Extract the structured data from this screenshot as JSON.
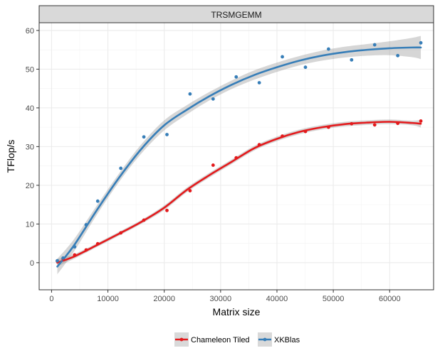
{
  "chart_data": {
    "type": "scatter",
    "title": "",
    "facet_label": "TRSMGEMM",
    "xlabel": "Matrix size",
    "ylabel": "TFlop/s",
    "xlim": [
      -2200,
      67800
    ],
    "ylim": [
      -7,
      62
    ],
    "x_ticks": [
      0,
      10000,
      20000,
      30000,
      40000,
      50000,
      60000
    ],
    "x_tick_labels": [
      "0",
      "10000",
      "20000",
      "30000",
      "40000",
      "50000",
      "60000"
    ],
    "y_ticks": [
      0,
      10,
      20,
      30,
      40,
      50,
      60
    ],
    "y_tick_labels": [
      "0",
      "10",
      "20",
      "30",
      "40",
      "50",
      "60"
    ],
    "grid": true,
    "legend_position": "bottom",
    "series": [
      {
        "name": "Chameleon Tiled",
        "color": "#e31a1c",
        "points": [
          [
            1024,
            0.4
          ],
          [
            2048,
            1.0
          ],
          [
            4096,
            2.0
          ],
          [
            6144,
            3.3
          ],
          [
            8192,
            4.9
          ],
          [
            12288,
            7.7
          ],
          [
            16384,
            11.0
          ],
          [
            20480,
            13.5
          ],
          [
            24576,
            18.6
          ],
          [
            28672,
            25.2
          ],
          [
            32768,
            27.1
          ],
          [
            36864,
            30.5
          ],
          [
            40960,
            32.7
          ],
          [
            45056,
            33.9
          ],
          [
            49152,
            35.0
          ],
          [
            53248,
            35.9
          ],
          [
            57344,
            35.6
          ],
          [
            61440,
            36.0
          ],
          [
            65536,
            36.6
          ]
        ],
        "fit": [
          [
            1024,
            0.0
          ],
          [
            4000,
            1.6
          ],
          [
            8000,
            4.5
          ],
          [
            12000,
            7.5
          ],
          [
            16000,
            10.6
          ],
          [
            20000,
            14.2
          ],
          [
            24000,
            18.8
          ],
          [
            28000,
            22.6
          ],
          [
            32000,
            26.1
          ],
          [
            36000,
            29.6
          ],
          [
            40000,
            32.0
          ],
          [
            44000,
            33.8
          ],
          [
            48000,
            35.0
          ],
          [
            52000,
            35.8
          ],
          [
            56000,
            36.2
          ],
          [
            60000,
            36.4
          ],
          [
            64000,
            36.1
          ],
          [
            65536,
            35.9
          ]
        ],
        "band_halfwidth": [
          1.0,
          0.6,
          0.5,
          0.5,
          0.5,
          0.6,
          0.6,
          0.6,
          0.6,
          0.6,
          0.6,
          0.6,
          0.6,
          0.6,
          0.6,
          0.6,
          0.6,
          1.0
        ]
      },
      {
        "name": "XKBlas",
        "color": "#377eb8",
        "points": [
          [
            1024,
            0.5
          ],
          [
            2048,
            1.2
          ],
          [
            4096,
            4.1
          ],
          [
            6144,
            9.8
          ],
          [
            8192,
            15.9
          ],
          [
            12288,
            24.4
          ],
          [
            16384,
            32.5
          ],
          [
            20480,
            33.1
          ],
          [
            24576,
            43.6
          ],
          [
            28672,
            42.3
          ],
          [
            32768,
            48.0
          ],
          [
            36864,
            46.5
          ],
          [
            40960,
            53.2
          ],
          [
            45056,
            50.5
          ],
          [
            49152,
            55.2
          ],
          [
            53248,
            52.4
          ],
          [
            57344,
            56.3
          ],
          [
            61440,
            53.5
          ],
          [
            65536,
            56.8
          ]
        ],
        "fit": [
          [
            1024,
            -1.0
          ],
          [
            4000,
            4.5
          ],
          [
            8000,
            13.5
          ],
          [
            12000,
            22.0
          ],
          [
            16000,
            29.5
          ],
          [
            20000,
            35.5
          ],
          [
            24000,
            39.5
          ],
          [
            28000,
            43.0
          ],
          [
            32000,
            46.0
          ],
          [
            36000,
            48.5
          ],
          [
            40000,
            50.5
          ],
          [
            44000,
            52.2
          ],
          [
            48000,
            53.5
          ],
          [
            52000,
            54.4
          ],
          [
            56000,
            55.0
          ],
          [
            60000,
            55.4
          ],
          [
            64000,
            55.6
          ],
          [
            65536,
            55.6
          ]
        ],
        "band_halfwidth": [
          2.0,
          1.6,
          1.2,
          1.1,
          1.2,
          1.3,
          1.2,
          1.1,
          1.1,
          1.2,
          1.2,
          1.2,
          1.3,
          1.4,
          1.5,
          1.8,
          2.5,
          3.0
        ]
      }
    ]
  }
}
